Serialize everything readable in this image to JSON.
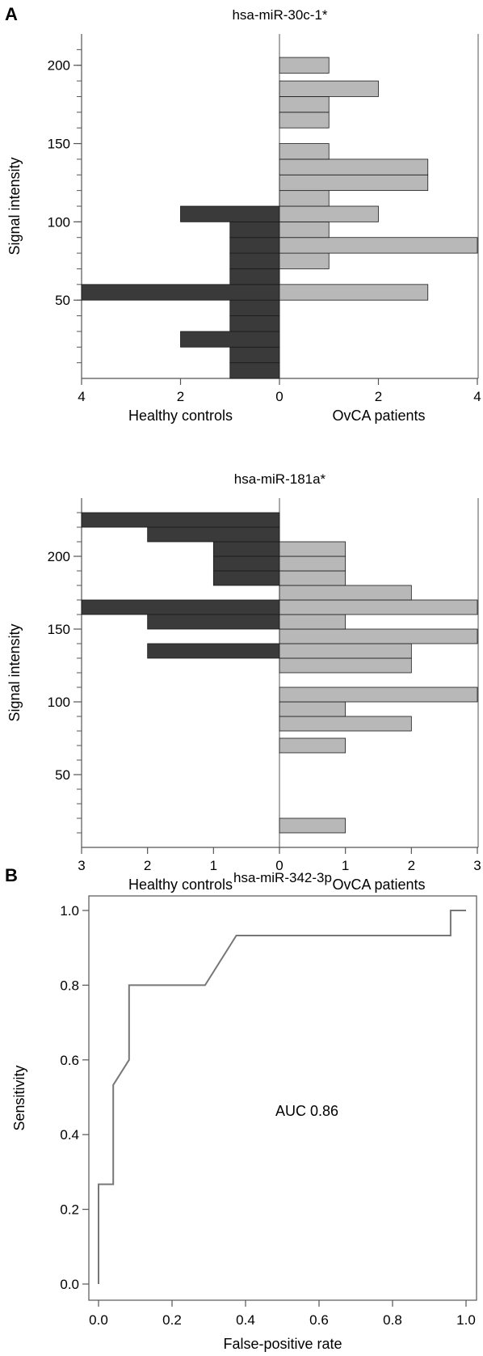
{
  "panel_labels": [
    "A",
    "B"
  ],
  "colors": {
    "healthy": "#3a3a3a",
    "patients": "#b8b8b8",
    "bar_stroke": "#1a1a1a",
    "axis": "#555555",
    "roc_line": "#777777"
  },
  "chart_data": [
    {
      "type": "bar",
      "orientation": "horizontal-mirrored",
      "title": "hsa-miR-30c-1*",
      "ylabel": "Signal intensity",
      "left_label": "Healthy controls",
      "right_label": "OvCA patients",
      "ylim": [
        0,
        220
      ],
      "yticks": [
        50,
        100,
        150,
        200
      ],
      "xmax": 4,
      "xticks_left": [
        "4",
        "2",
        "0"
      ],
      "xticks_right": [
        "2",
        "4"
      ],
      "bin_width": 10,
      "healthy": [
        {
          "y": 0,
          "count": 1
        },
        {
          "y": 10,
          "count": 1
        },
        {
          "y": 20,
          "count": 2
        },
        {
          "y": 30,
          "count": 1
        },
        {
          "y": 40,
          "count": 1
        },
        {
          "y": 50,
          "count": 4
        },
        {
          "y": 60,
          "count": 1
        },
        {
          "y": 70,
          "count": 1
        },
        {
          "y": 80,
          "count": 1
        },
        {
          "y": 90,
          "count": 1
        },
        {
          "y": 100,
          "count": 2
        }
      ],
      "patients": [
        {
          "y": 50,
          "count": 3
        },
        {
          "y": 60,
          "count": 0
        },
        {
          "y": 70,
          "count": 1
        },
        {
          "y": 80,
          "count": 4
        },
        {
          "y": 90,
          "count": 1
        },
        {
          "y": 100,
          "count": 2
        },
        {
          "y": 110,
          "count": 1
        },
        {
          "y": 120,
          "count": 3
        },
        {
          "y": 130,
          "count": 3
        },
        {
          "y": 140,
          "count": 1
        },
        {
          "y": 160,
          "count": 1
        },
        {
          "y": 170,
          "count": 1
        },
        {
          "y": 180,
          "count": 2
        },
        {
          "y": 195,
          "count": 1
        }
      ]
    },
    {
      "type": "bar",
      "orientation": "horizontal-mirrored",
      "title": "hsa-miR-181a*",
      "ylabel": "Signal intensity",
      "left_label": "Healthy controls",
      "right_label": "OvCA patients",
      "ylim": [
        0,
        240
      ],
      "yticks": [
        50,
        100,
        150,
        200
      ],
      "xmax": 3,
      "xticks_left": [
        "3",
        "2",
        "1",
        "0"
      ],
      "xticks_right": [
        "1",
        "2",
        "3"
      ],
      "bin_width": 10,
      "healthy": [
        {
          "y": 130,
          "count": 2
        },
        {
          "y": 150,
          "count": 2
        },
        {
          "y": 160,
          "count": 3
        },
        {
          "y": 180,
          "count": 1
        },
        {
          "y": 190,
          "count": 1
        },
        {
          "y": 200,
          "count": 1
        },
        {
          "y": 210,
          "count": 2
        },
        {
          "y": 220,
          "count": 3
        }
      ],
      "patients": [
        {
          "y": 10,
          "count": 1
        },
        {
          "y": 65,
          "count": 1
        },
        {
          "y": 80,
          "count": 2
        },
        {
          "y": 90,
          "count": 1
        },
        {
          "y": 100,
          "count": 3
        },
        {
          "y": 120,
          "count": 2
        },
        {
          "y": 130,
          "count": 2
        },
        {
          "y": 140,
          "count": 3
        },
        {
          "y": 150,
          "count": 1
        },
        {
          "y": 160,
          "count": 3
        },
        {
          "y": 170,
          "count": 2
        },
        {
          "y": 180,
          "count": 1
        },
        {
          "y": 190,
          "count": 1
        },
        {
          "y": 200,
          "count": 1
        }
      ]
    },
    {
      "type": "line",
      "title": "hsa-miR-342-3p",
      "xlabel": "False-positive rate",
      "ylabel": "Sensitivity",
      "annotation": "AUC 0.86",
      "xlim": [
        0,
        1
      ],
      "ylim": [
        0,
        1
      ],
      "xticks": [
        "0.0",
        "0.2",
        "0.4",
        "0.6",
        "0.8",
        "1.0"
      ],
      "yticks": [
        "0.0",
        "0.2",
        "0.4",
        "0.6",
        "0.8",
        "1.0"
      ],
      "series": [
        {
          "x": [
            0,
            0,
            0.04,
            0.04,
            0.083,
            0.083,
            0.29,
            0.375,
            0.958,
            0.958,
            1.0
          ],
          "y": [
            0,
            0.267,
            0.267,
            0.533,
            0.6,
            0.8,
            0.8,
            0.933,
            0.933,
            1.0,
            1.0
          ]
        }
      ]
    }
  ]
}
